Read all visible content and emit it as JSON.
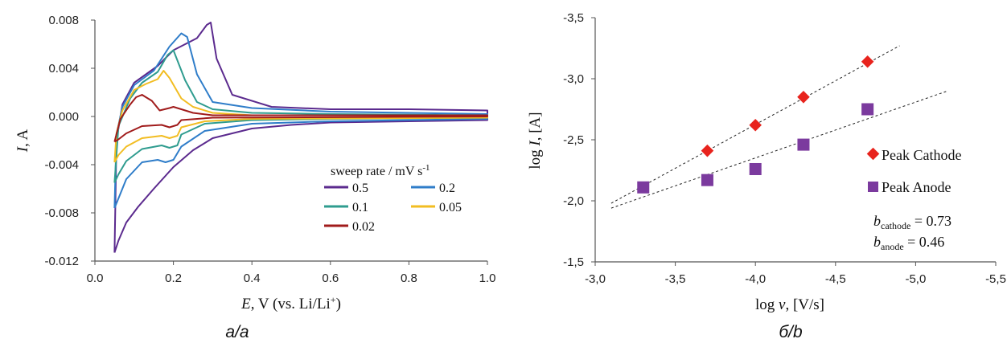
{
  "chart_data": [
    {
      "type": "line",
      "panel_caption": "a/a",
      "xlabel_parts": {
        "var": "E",
        "rest": ", V (vs. Li/Li",
        "sup": "+",
        "close": ")"
      },
      "ylabel_parts": {
        "var": "I",
        "rest": ", A"
      },
      "xlim": [
        0.0,
        1.0
      ],
      "ylim": [
        -0.012,
        0.008
      ],
      "xticks": [
        "0.0",
        "0.2",
        "0.4",
        "0.6",
        "0.8",
        "1.0"
      ],
      "yticks": [
        "-0.012",
        "-0.008",
        "-0.004",
        "0.000",
        "0.004",
        "0.008"
      ],
      "grid": false,
      "legend": {
        "title_parts": {
          "text": "sweep rate / mV s",
          "sup": "-1"
        },
        "placement": "lower-right"
      },
      "series": [
        {
          "name": "0.5",
          "color": "#5b2a8e",
          "points": [
            [
              0.05,
              -0.0113
            ],
            [
              0.06,
              -0.0103
            ],
            [
              0.08,
              -0.0088
            ],
            [
              0.11,
              -0.0075
            ],
            [
              0.15,
              -0.006
            ],
            [
              0.2,
              -0.0042
            ],
            [
              0.25,
              -0.0028
            ],
            [
              0.3,
              -0.0018
            ],
            [
              0.4,
              -0.001
            ],
            [
              0.5,
              -0.0007
            ],
            [
              0.6,
              -0.0005
            ],
            [
              0.8,
              -0.0004
            ],
            [
              1.0,
              -0.0003
            ],
            [
              1.0,
              0.0005
            ],
            [
              0.8,
              0.0006
            ],
            [
              0.6,
              0.0006
            ],
            [
              0.45,
              0.0008
            ],
            [
              0.35,
              0.0018
            ],
            [
              0.31,
              0.0048
            ],
            [
              0.295,
              0.0078
            ],
            [
              0.285,
              0.0076
            ],
            [
              0.26,
              0.0065
            ],
            [
              0.2,
              0.0055
            ],
            [
              0.16,
              0.0042
            ],
            [
              0.1,
              0.0028
            ],
            [
              0.07,
              0.001
            ],
            [
              0.055,
              -0.002
            ],
            [
              0.05,
              -0.0113
            ]
          ]
        },
        {
          "name": "0.2",
          "color": "#2f7dc9",
          "points": [
            [
              0.05,
              -0.0076
            ],
            [
              0.06,
              -0.0068
            ],
            [
              0.08,
              -0.0052
            ],
            [
              0.12,
              -0.0038
            ],
            [
              0.16,
              -0.0036
            ],
            [
              0.18,
              -0.0038
            ],
            [
              0.2,
              -0.0036
            ],
            [
              0.22,
              -0.0025
            ],
            [
              0.28,
              -0.0012
            ],
            [
              0.4,
              -0.0006
            ],
            [
              0.6,
              -0.0004
            ],
            [
              0.8,
              -0.0003
            ],
            [
              1.0,
              -0.0002
            ],
            [
              1.0,
              0.0002
            ],
            [
              0.8,
              0.0003
            ],
            [
              0.6,
              0.0004
            ],
            [
              0.4,
              0.0007
            ],
            [
              0.3,
              0.0012
            ],
            [
              0.26,
              0.0035
            ],
            [
              0.235,
              0.0066
            ],
            [
              0.22,
              0.0069
            ],
            [
              0.19,
              0.0058
            ],
            [
              0.15,
              0.0038
            ],
            [
              0.1,
              0.0026
            ],
            [
              0.07,
              0.0008
            ],
            [
              0.055,
              -0.0015
            ],
            [
              0.05,
              -0.0076
            ]
          ]
        },
        {
          "name": "0.1",
          "color": "#2f9c8f",
          "points": [
            [
              0.05,
              -0.0055
            ],
            [
              0.06,
              -0.0048
            ],
            [
              0.08,
              -0.0037
            ],
            [
              0.12,
              -0.0027
            ],
            [
              0.17,
              -0.0024
            ],
            [
              0.19,
              -0.0026
            ],
            [
              0.21,
              -0.0024
            ],
            [
              0.22,
              -0.0015
            ],
            [
              0.28,
              -0.0006
            ],
            [
              0.4,
              -0.0003
            ],
            [
              0.6,
              -0.0002
            ],
            [
              1.0,
              -0.0001
            ],
            [
              1.0,
              0.0001
            ],
            [
              0.6,
              0.0002
            ],
            [
              0.4,
              0.0003
            ],
            [
              0.3,
              0.0006
            ],
            [
              0.26,
              0.0012
            ],
            [
              0.23,
              0.003
            ],
            [
              0.2,
              0.0055
            ],
            [
              0.185,
              0.0051
            ],
            [
              0.16,
              0.0037
            ],
            [
              0.12,
              0.0028
            ],
            [
              0.09,
              0.0015
            ],
            [
              0.06,
              -0.0008
            ],
            [
              0.05,
              -0.0055
            ]
          ]
        },
        {
          "name": "0.05",
          "color": "#f2bd22",
          "points": [
            [
              0.05,
              -0.0038
            ],
            [
              0.06,
              -0.0032
            ],
            [
              0.08,
              -0.0025
            ],
            [
              0.12,
              -0.0018
            ],
            [
              0.17,
              -0.0016
            ],
            [
              0.19,
              -0.0018
            ],
            [
              0.21,
              -0.0016
            ],
            [
              0.22,
              -0.0009
            ],
            [
              0.28,
              -0.0004
            ],
            [
              0.4,
              -0.0002
            ],
            [
              1.0,
              -0.0001
            ],
            [
              1.0,
              0.0001
            ],
            [
              0.4,
              0.0001
            ],
            [
              0.3,
              0.0003
            ],
            [
              0.25,
              0.0008
            ],
            [
              0.22,
              0.0015
            ],
            [
              0.19,
              0.0032
            ],
            [
              0.175,
              0.0038
            ],
            [
              0.16,
              0.0031
            ],
            [
              0.13,
              0.0027
            ],
            [
              0.1,
              0.0022
            ],
            [
              0.07,
              0.0005
            ],
            [
              0.055,
              -0.0014
            ],
            [
              0.05,
              -0.0038
            ]
          ]
        },
        {
          "name": "0.02",
          "color": "#a01b1b",
          "points": [
            [
              0.05,
              -0.0021
            ],
            [
              0.06,
              -0.0019
            ],
            [
              0.08,
              -0.0014
            ],
            [
              0.12,
              -0.0008
            ],
            [
              0.17,
              -0.0007
            ],
            [
              0.19,
              -0.0009
            ],
            [
              0.21,
              -0.0007
            ],
            [
              0.22,
              -0.0003
            ],
            [
              0.3,
              -0.0001
            ],
            [
              1.0,
              0.0
            ],
            [
              1.0,
              0.0001
            ],
            [
              0.4,
              0.0001
            ],
            [
              0.3,
              0.0001
            ],
            [
              0.25,
              0.0003
            ],
            [
              0.22,
              0.0006
            ],
            [
              0.2,
              0.0008
            ],
            [
              0.19,
              0.0007
            ],
            [
              0.165,
              0.0005
            ],
            [
              0.145,
              0.0013
            ],
            [
              0.13,
              0.0016
            ],
            [
              0.12,
              0.0018
            ],
            [
              0.105,
              0.0016
            ],
            [
              0.09,
              0.001
            ],
            [
              0.065,
              -0.0002
            ],
            [
              0.05,
              -0.0021
            ]
          ]
        }
      ]
    },
    {
      "type": "scatter",
      "panel_caption": "б/b",
      "xlabel_parts": {
        "pre": "log ",
        "var": "ν",
        "rest": ", [V/s]"
      },
      "ylabel_parts": {
        "pre": "log ",
        "var": "I",
        "rest": ", [A]"
      },
      "xlim": [
        -3.0,
        -5.5
      ],
      "ylim": [
        -1.5,
        -3.5
      ],
      "x_axis_reversed": true,
      "y_axis_reversed": true,
      "xticks": [
        "-3,0",
        "-3,5",
        "-4,0",
        "-4,5",
        "-5,0",
        "-5,5"
      ],
      "yticks": [
        "-1,5",
        "-2,0",
        "-2,5",
        "-3,0",
        "-3,5"
      ],
      "grid": false,
      "series": [
        {
          "name": "Peak Cathode",
          "marker": "diamond",
          "color": "#e8231d",
          "x": [
            -3.7,
            -4.0,
            -4.3,
            -4.7
          ],
          "y": [
            -2.41,
            -2.62,
            -2.85,
            -3.14
          ]
        },
        {
          "name": "Peak Anode",
          "marker": "square",
          "color": "#7b3a9e",
          "x": [
            -3.3,
            -3.7,
            -4.0,
            -4.3,
            -4.7
          ],
          "y": [
            -2.11,
            -2.17,
            -2.26,
            -2.46,
            -2.75
          ]
        }
      ],
      "trendlines": [
        {
          "x": [
            -3.1,
            -4.9
          ],
          "y": [
            -1.98,
            -3.27
          ],
          "style": "dashed"
        },
        {
          "x": [
            -3.1,
            -5.2
          ],
          "y": [
            -1.94,
            -2.9
          ],
          "style": "dashed"
        }
      ],
      "annotations": [
        {
          "var": "b",
          "sub": "cathode",
          "rest": " = 0.73"
        },
        {
          "var": "b",
          "sub": "anode",
          "rest": " = 0.46"
        }
      ],
      "legend": {
        "placement": "right"
      }
    }
  ]
}
